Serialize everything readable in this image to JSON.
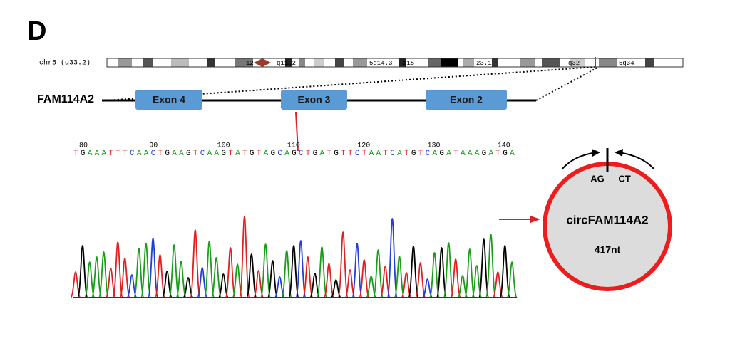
{
  "panel_label": "D",
  "chromosome": {
    "label": "chr5 (q33.2)",
    "bands": [
      "12",
      "q11.2",
      "5q14.3",
      "q15",
      "23.1",
      "q32",
      "5q34"
    ]
  },
  "gene": {
    "name": "FAM114A2",
    "exons": [
      "Exon 4",
      "Exon 3",
      "Exon 2"
    ]
  },
  "sequence": {
    "positions": [
      "80",
      "90",
      "100",
      "110",
      "120",
      "130",
      "140"
    ],
    "bases": "TGAAATTTCAACTGAAGTCAAGTATGTAGCAGCTGATGTTCTAATCATGTCAGATAAAGATGA"
  },
  "circle": {
    "left_junction": "AG",
    "right_junction": "CT",
    "name": "circFAM114A2",
    "length": "417nt"
  }
}
